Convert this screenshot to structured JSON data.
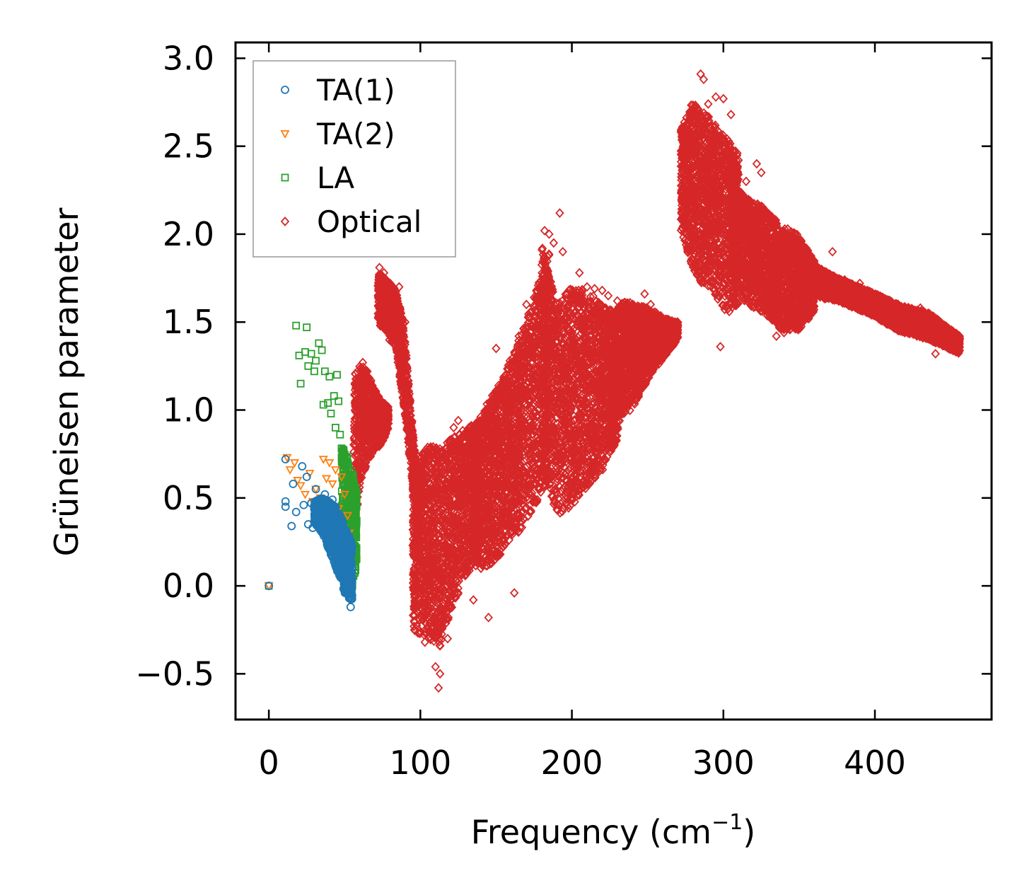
{
  "chart_data": {
    "type": "scatter",
    "title": "",
    "xlabel": "Frequency (cm",
    "xlabel_sup": "−1",
    "xlabel_close": ")",
    "ylabel": "Grüneisen parameter",
    "xlim": [
      -22,
      477
    ],
    "ylim": [
      -0.76,
      3.09
    ],
    "xticks": [
      0,
      100,
      200,
      300,
      400
    ],
    "xtick_labels": [
      "0",
      "100",
      "200",
      "300",
      "400"
    ],
    "yticks": [
      -0.5,
      0.0,
      0.5,
      1.0,
      1.5,
      2.0,
      2.5,
      3.0
    ],
    "ytick_labels": [
      "−0.5",
      "0.0",
      "0.5",
      "1.0",
      "1.5",
      "2.0",
      "2.5",
      "3.0"
    ],
    "legend_position": "top-left",
    "series": [
      {
        "name": "TA(1)",
        "marker": "circle",
        "color": "#1f77b4",
        "points": [
          [
            0,
            0.0
          ],
          [
            11,
            0.72
          ],
          [
            11,
            0.48
          ],
          [
            11,
            0.45
          ],
          [
            15,
            0.34
          ],
          [
            16,
            0.58
          ],
          [
            18,
            0.42
          ],
          [
            22,
            0.68
          ],
          [
            23,
            0.46
          ],
          [
            25,
            0.62
          ],
          [
            26,
            0.35
          ],
          [
            28,
            0.47
          ],
          [
            29,
            0.33
          ],
          [
            31,
            0.55
          ],
          [
            32,
            0.45
          ],
          [
            33,
            0.4
          ],
          [
            34,
            0.49
          ],
          [
            35,
            0.37
          ],
          [
            36,
            0.3
          ],
          [
            37,
            0.52
          ],
          [
            38,
            0.27
          ],
          [
            39,
            0.43
          ],
          [
            40,
            0.47
          ],
          [
            41,
            0.38
          ],
          [
            42,
            0.49
          ],
          [
            42,
            0.33
          ],
          [
            43,
            0.26
          ],
          [
            44,
            0.45
          ],
          [
            45,
            0.36
          ],
          [
            46,
            0.41
          ],
          [
            46,
            0.24
          ],
          [
            47,
            0.31
          ],
          [
            47,
            0.19
          ],
          [
            48,
            0.37
          ],
          [
            48,
            0.27
          ],
          [
            49,
            0.15
          ],
          [
            49,
            0.22
          ],
          [
            50,
            0.3
          ],
          [
            50,
            0.09
          ],
          [
            51,
            0.18
          ],
          [
            51,
            0.04
          ],
          [
            52,
            0.12
          ],
          [
            52,
            -0.02
          ],
          [
            53,
            0.06
          ],
          [
            53,
            -0.07
          ],
          [
            54,
            0.01
          ],
          [
            54,
            -0.12
          ]
        ],
        "bands": [
          {
            "x0": 30,
            "x1": 55,
            "ytop": [
              0.48,
              0.5,
              0.48,
              0.44,
              0.34,
              0.24
            ],
            "ybot": [
              0.36,
              0.3,
              0.2,
              0.08,
              -0.04,
              -0.1
            ]
          }
        ]
      },
      {
        "name": "TA(2)",
        "marker": "triangle-down",
        "color": "#ff7f0e",
        "points": [
          [
            0,
            0.0
          ],
          [
            12,
            0.73
          ],
          [
            14,
            0.66
          ],
          [
            17,
            0.7
          ],
          [
            19,
            0.6
          ],
          [
            21,
            0.57
          ],
          [
            24,
            0.52
          ],
          [
            27,
            0.64
          ],
          [
            29,
            0.48
          ],
          [
            31,
            0.55
          ],
          [
            34,
            0.5
          ],
          [
            36,
            0.72
          ],
          [
            38,
            0.61
          ],
          [
            40,
            0.7
          ],
          [
            42,
            0.58
          ],
          [
            44,
            0.66
          ],
          [
            46,
            0.44
          ],
          [
            48,
            0.62
          ],
          [
            50,
            0.52
          ],
          [
            52,
            0.4
          ],
          [
            53,
            0.3
          ],
          [
            54,
            0.22
          ]
        ],
        "bands": []
      },
      {
        "name": "LA",
        "marker": "square",
        "color": "#2ca02c",
        "points": [
          [
            0,
            0.0
          ],
          [
            18,
            1.48
          ],
          [
            20,
            1.31
          ],
          [
            21,
            1.15
          ],
          [
            24,
            1.33
          ],
          [
            25,
            1.47
          ],
          [
            26,
            1.25
          ],
          [
            28,
            1.32
          ],
          [
            30,
            1.22
          ],
          [
            31,
            1.28
          ],
          [
            33,
            1.38
          ],
          [
            35,
            1.34
          ],
          [
            36,
            1.03
          ],
          [
            37,
            1.22
          ],
          [
            39,
            1.04
          ],
          [
            40,
            1.19
          ],
          [
            41,
            0.98
          ],
          [
            43,
            1.08
          ],
          [
            44,
            0.9
          ],
          [
            45,
            1.2
          ],
          [
            46,
            1.05
          ],
          [
            47,
            0.86
          ],
          [
            48,
            0.78
          ],
          [
            49,
            0.7
          ],
          [
            50,
            0.6
          ],
          [
            51,
            0.5
          ],
          [
            52,
            0.42
          ],
          [
            53,
            0.2
          ],
          [
            54,
            0.05
          ],
          [
            55,
            0.3
          ]
        ],
        "bands": [
          {
            "x0": 48,
            "x1": 58,
            "ytop": [
              0.8,
              0.74,
              0.66,
              0.55
            ],
            "ybot": [
              0.1,
              0.0,
              -0.02,
              0.1
            ]
          }
        ]
      },
      {
        "name": "Optical",
        "marker": "diamond",
        "color": "#d62728",
        "points": [
          [
            62,
            1.27
          ],
          [
            65,
            1.22
          ],
          [
            68,
            1.1
          ],
          [
            70,
            1.05
          ],
          [
            73,
            1.81
          ],
          [
            76,
            1.78
          ],
          [
            80,
            1.72
          ],
          [
            86,
            1.7
          ],
          [
            90,
            1.5
          ],
          [
            95,
            0.55
          ],
          [
            96,
            -0.13
          ],
          [
            103,
            -0.32
          ],
          [
            110,
            -0.46
          ],
          [
            112,
            -0.58
          ],
          [
            113,
            -0.5
          ],
          [
            118,
            -0.3
          ],
          [
            122,
            0.9
          ],
          [
            125,
            0.94
          ],
          [
            128,
            0.4
          ],
          [
            135,
            -0.08
          ],
          [
            140,
            0.1
          ],
          [
            145,
            -0.18
          ],
          [
            150,
            1.35
          ],
          [
            155,
            0.5
          ],
          [
            162,
            -0.04
          ],
          [
            165,
            1.42
          ],
          [
            170,
            1.6
          ],
          [
            176,
            1.3
          ],
          [
            182,
            2.02
          ],
          [
            185,
            2.0
          ],
          [
            188,
            1.95
          ],
          [
            192,
            2.12
          ],
          [
            194,
            1.9
          ],
          [
            196,
            0.97
          ],
          [
            200,
            0.5
          ],
          [
            205,
            1.78
          ],
          [
            210,
            1.7
          ],
          [
            215,
            1.69
          ],
          [
            220,
            1.68
          ],
          [
            224,
            1.65
          ],
          [
            230,
            1.62
          ],
          [
            240,
            1.55
          ],
          [
            248,
            1.66
          ],
          [
            252,
            1.6
          ],
          [
            260,
            1.52
          ],
          [
            265,
            1.5
          ],
          [
            272,
            2.58
          ],
          [
            275,
            2.62
          ],
          [
            280,
            2.56
          ],
          [
            285,
            2.91
          ],
          [
            287,
            2.88
          ],
          [
            290,
            2.74
          ],
          [
            295,
            2.78
          ],
          [
            298,
            1.36
          ],
          [
            300,
            2.77
          ],
          [
            305,
            2.68
          ],
          [
            310,
            2.42
          ],
          [
            315,
            2.3
          ],
          [
            322,
            2.4
          ],
          [
            325,
            2.35
          ],
          [
            328,
            1.6
          ],
          [
            335,
            1.42
          ],
          [
            340,
            1.44
          ],
          [
            350,
            1.47
          ],
          [
            360,
            1.72
          ],
          [
            372,
            1.9
          ],
          [
            380,
            1.74
          ],
          [
            390,
            1.72
          ],
          [
            400,
            1.65
          ],
          [
            410,
            1.6
          ],
          [
            420,
            1.55
          ],
          [
            425,
            1.5
          ],
          [
            430,
            1.58
          ],
          [
            435,
            1.45
          ],
          [
            440,
            1.32
          ],
          [
            445,
            1.4
          ],
          [
            450,
            1.38
          ],
          [
            455,
            1.36
          ]
        ],
        "bands": [
          {
            "x0": 56,
            "x1": 79,
            "ytop": [
              1.2,
              1.26,
              1.22,
              1.12,
              1.05,
              1.02
            ],
            "ybot": [
              0.3,
              0.6,
              0.7,
              0.78,
              0.8,
              0.9
            ]
          },
          {
            "x0": 72,
            "x1": 100,
            "ytop": [
              1.8,
              1.74,
              1.7,
              1.5,
              0.95,
              0.4
            ],
            "ybot": [
              1.5,
              1.42,
              1.35,
              1.05,
              0.6,
              0.1
            ]
          },
          {
            "x0": 95,
            "x1": 140,
            "ytop": [
              0.65,
              0.8,
              0.78,
              0.85,
              0.9,
              0.95
            ],
            "ybot": [
              -0.25,
              -0.3,
              -0.35,
              -0.1,
              0.05,
              0.2
            ]
          },
          {
            "x0": 135,
            "x1": 185,
            "ytop": [
              0.9,
              1.05,
              1.2,
              1.4,
              1.65,
              1.9
            ],
            "ybot": [
              0.1,
              0.1,
              0.2,
              0.3,
              0.45,
              0.6
            ]
          },
          {
            "x0": 180,
            "x1": 230,
            "ytop": [
              1.95,
              1.6,
              1.7,
              1.68,
              1.6,
              1.55
            ],
            "ybot": [
              0.7,
              0.4,
              0.45,
              0.55,
              0.65,
              0.8
            ]
          },
          {
            "x0": 225,
            "x1": 270,
            "ytop": [
              1.55,
              1.62,
              1.6,
              1.58,
              1.52,
              1.5
            ],
            "ybot": [
              0.8,
              0.95,
              1.05,
              1.2,
              1.3,
              1.4
            ]
          },
          {
            "x0": 272,
            "x1": 310,
            "ytop": [
              2.6,
              2.75,
              2.7,
              2.62,
              2.55,
              2.45
            ],
            "ybot": [
              2.0,
              1.8,
              1.7,
              1.65,
              1.55,
              1.6
            ]
          },
          {
            "x0": 305,
            "x1": 360,
            "ytop": [
              2.3,
              2.2,
              2.15,
              2.05,
              2.0,
              1.85
            ],
            "ybot": [
              1.7,
              1.6,
              1.55,
              1.45,
              1.45,
              1.55
            ]
          },
          {
            "x0": 355,
            "x1": 456,
            "ytop": [
              1.85,
              1.75,
              1.68,
              1.6,
              1.55,
              1.42
            ],
            "ybot": [
              1.65,
              1.62,
              1.55,
              1.45,
              1.4,
              1.32
            ]
          }
        ]
      }
    ]
  }
}
